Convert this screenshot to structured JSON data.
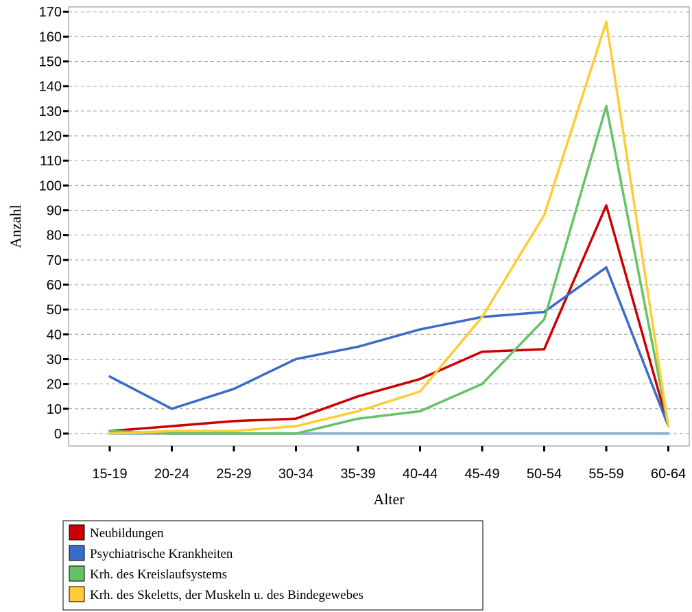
{
  "chart_data": {
    "type": "line",
    "categories": [
      "15-19",
      "20-24",
      "25-29",
      "30-34",
      "35-39",
      "40-44",
      "45-49",
      "50-54",
      "55-59",
      "60-64"
    ],
    "xlabel": "Alter",
    "ylabel": "Anzahl",
    "ylim": [
      -5,
      172
    ],
    "yticks": [
      0,
      10,
      20,
      30,
      40,
      50,
      60,
      70,
      80,
      90,
      100,
      110,
      120,
      130,
      140,
      150,
      160,
      170
    ],
    "grid": true,
    "legend_position": "bottom-left",
    "series": [
      {
        "name": "Neubildungen",
        "color": "#cc0000",
        "values": [
          1,
          3,
          5,
          6,
          15,
          22,
          33,
          34,
          92,
          3
        ]
      },
      {
        "name": "Psychiatrische Krankheiten",
        "color": "#3a6bc8",
        "values": [
          23,
          10,
          18,
          30,
          35,
          42,
          47,
          49,
          67,
          3
        ]
      },
      {
        "name": "Krh. des Kreislaufsystems",
        "color": "#66c266",
        "values": [
          1,
          0,
          0,
          0,
          6,
          9,
          20,
          46,
          132,
          3
        ]
      },
      {
        "name": "Krh. des Skeletts, der Muskeln u. des Bindegewebes",
        "color": "#ffcc33",
        "values": [
          0,
          1,
          1,
          3,
          9,
          17,
          47,
          88,
          166,
          3
        ]
      }
    ],
    "baseline": {
      "color": "#8fb6d9",
      "value": 0
    }
  }
}
